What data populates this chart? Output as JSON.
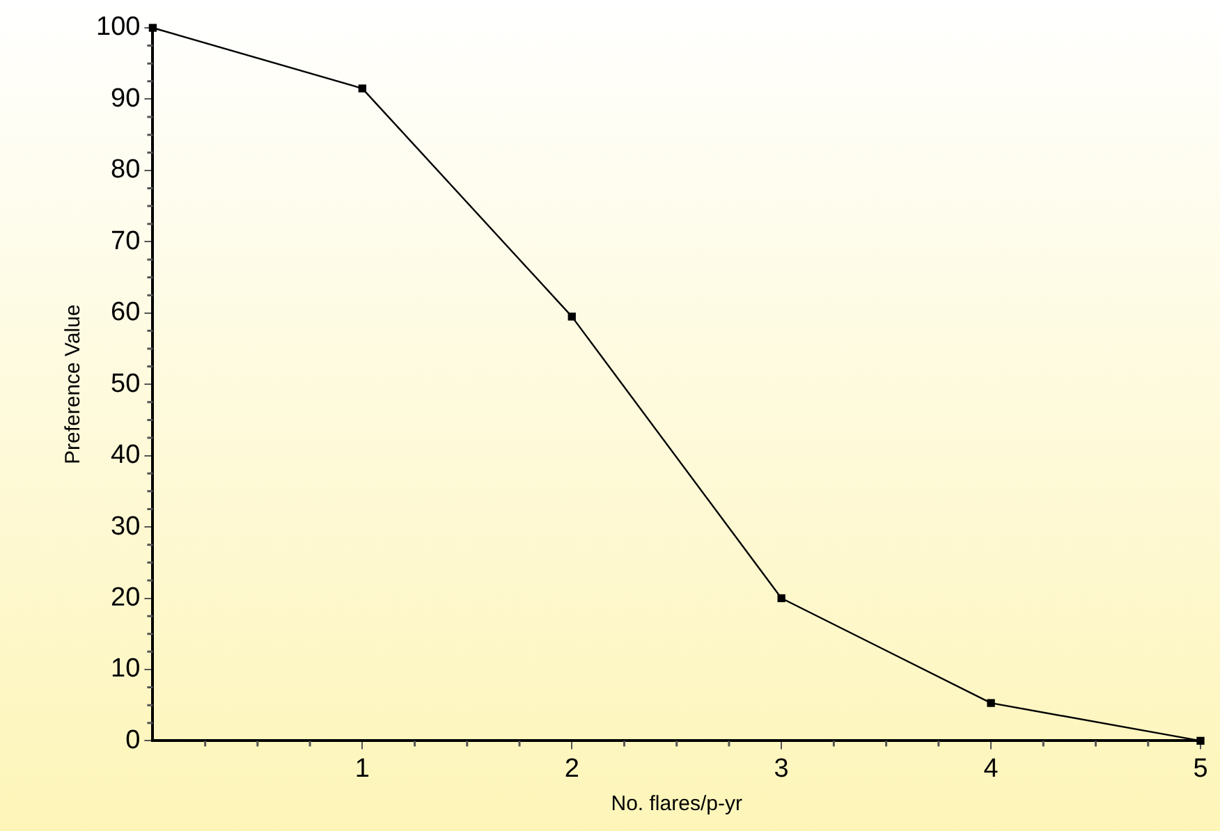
{
  "chart_data": {
    "type": "line",
    "xlabel": "No. flares/p-yr",
    "ylabel": "Preference Value",
    "x": [
      0,
      1,
      2,
      3,
      4,
      5
    ],
    "series": [
      {
        "color": "#000000",
        "values": [
          100,
          91.5,
          59.5,
          20,
          5.3,
          0
        ]
      }
    ],
    "xlim": [
      0,
      5
    ],
    "xticks": [
      1,
      2,
      3,
      4,
      5
    ],
    "ylim": [
      0,
      100
    ],
    "yticks": [
      0,
      10,
      20,
      30,
      40,
      50,
      60,
      70,
      80,
      90,
      100
    ],
    "grid": false,
    "legend": false,
    "marker": "square",
    "line_style": "solid"
  }
}
